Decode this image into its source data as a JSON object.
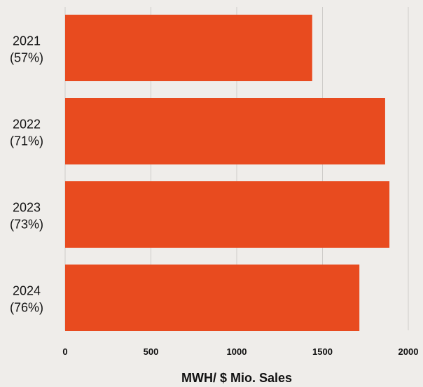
{
  "chart_data": {
    "type": "bar",
    "orientation": "horizontal",
    "categories": [
      [
        "2021",
        "(57%)"
      ],
      [
        "2022",
        "(71%)"
      ],
      [
        "2023",
        "(73%)"
      ],
      [
        "2024",
        "(76%)"
      ]
    ],
    "values": [
      1440,
      1865,
      1890,
      1715
    ],
    "xlabel": "MWH/ $ Mio. Sales",
    "ylabel": "",
    "title": "",
    "xlim": [
      0,
      2000
    ],
    "xticks": [
      0,
      500,
      1000,
      1500,
      2000
    ],
    "grid": "vertical",
    "colors": {
      "bar": "#e84b1f",
      "grid": "#cfcdca",
      "background": "#efedea"
    }
  }
}
